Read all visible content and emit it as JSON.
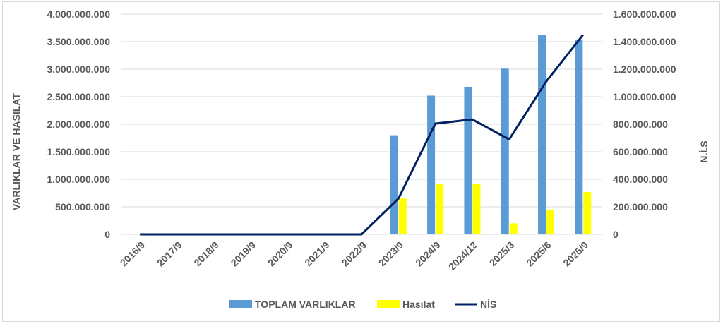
{
  "chart_data": {
    "type": "bar",
    "categories": [
      "2016/9",
      "2017/9",
      "2018/9",
      "2019/9",
      "2020/9",
      "2021/9",
      "2022/9",
      "2023/9",
      "2024/9",
      "2024/12",
      "2025/3",
      "2025/6",
      "2025/9"
    ],
    "series": [
      {
        "name": "TOPLAM VARLIKLAR",
        "type": "bar",
        "axis": "left",
        "color": "#5b9bd5",
        "values": [
          0,
          0,
          0,
          0,
          0,
          0,
          0,
          1800000000,
          2520000000,
          2680000000,
          3010000000,
          3620000000,
          3540000000
        ]
      },
      {
        "name": "Hasılat",
        "type": "bar",
        "axis": "left",
        "color": "#ffff00",
        "values": [
          0,
          0,
          0,
          0,
          0,
          0,
          0,
          650000000,
          910000000,
          920000000,
          200000000,
          450000000,
          770000000
        ]
      },
      {
        "name": "NİS",
        "type": "line",
        "axis": "right",
        "color": "#002060",
        "values": [
          0,
          0,
          0,
          0,
          0,
          0,
          0,
          260000000,
          805000000,
          835000000,
          690000000,
          1110000000,
          1450000000
        ]
      }
    ],
    "left_axis": {
      "title": "VARLIKLAR VE HASILAT",
      "ylim": [
        0,
        4000000000
      ],
      "tick_labels": [
        "0",
        "500.000.000",
        "1.000.000.000",
        "1.500.000.000",
        "2.000.000.000",
        "2.500.000.000",
        "3.000.000.000",
        "3.500.000.000",
        "4.000.000.000"
      ]
    },
    "right_axis": {
      "title": "N.İ.S",
      "ylim": [
        0,
        1600000000
      ],
      "tick_labels": [
        "0",
        "200.000.000",
        "400.000.000",
        "600.000.000",
        "800.000.000",
        "1.000.000.000",
        "1.200.000.000",
        "1.400.000.000",
        "1.600.000.000"
      ]
    },
    "grid": true,
    "legend_position": "bottom"
  }
}
